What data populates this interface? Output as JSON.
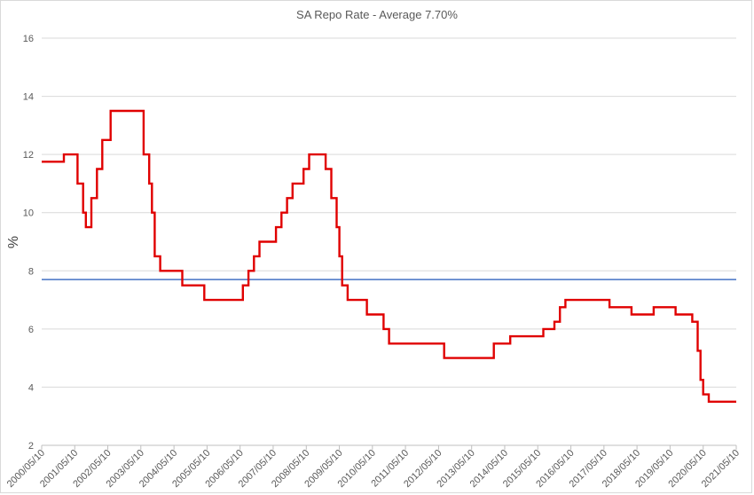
{
  "chart_data": {
    "type": "line",
    "title": "SA Repo Rate - Average 7.70%",
    "xlabel": "",
    "ylabel": "%",
    "ylim": [
      2,
      16
    ],
    "yticks": [
      2,
      4,
      6,
      8,
      10,
      12,
      14,
      16
    ],
    "xlim": [
      "2000/05/10",
      "2021/05/10"
    ],
    "xticks": [
      "2000/05/10",
      "2001/05/10",
      "2002/05/10",
      "2003/05/10",
      "2004/05/10",
      "2005/05/10",
      "2006/05/10",
      "2007/05/10",
      "2008/05/10",
      "2009/05/10",
      "2010/05/10",
      "2011/05/10",
      "2012/05/10",
      "2013/05/10",
      "2014/05/10",
      "2015/05/10",
      "2016/05/10",
      "2017/05/10",
      "2018/05/10",
      "2019/05/10",
      "2020/05/10",
      "2021/05/10"
    ],
    "grid": true,
    "average_line": {
      "value": 7.7,
      "color": "#4472c4"
    },
    "series": [
      {
        "color": "#e00000",
        "step": true,
        "points": [
          [
            "2000/05/10",
            11.75
          ],
          [
            "2001/01/10",
            12.0
          ],
          [
            "2001/06/10",
            11.0
          ],
          [
            "2001/08/10",
            10.0
          ],
          [
            "2001/09/10",
            9.5
          ],
          [
            "2001/11/10",
            10.5
          ],
          [
            "2002/01/10",
            11.5
          ],
          [
            "2002/03/10",
            12.5
          ],
          [
            "2002/06/10",
            13.5
          ],
          [
            "2003/06/10",
            12.0
          ],
          [
            "2003/08/10",
            11.0
          ],
          [
            "2003/09/10",
            10.0
          ],
          [
            "2003/10/10",
            8.5
          ],
          [
            "2003/12/10",
            8.0
          ],
          [
            "2004/08/10",
            7.5
          ],
          [
            "2005/04/10",
            7.0
          ],
          [
            "2006/06/10",
            7.5
          ],
          [
            "2006/08/10",
            8.0
          ],
          [
            "2006/10/10",
            8.5
          ],
          [
            "2006/12/10",
            9.0
          ],
          [
            "2007/06/10",
            9.5
          ],
          [
            "2007/08/10",
            10.0
          ],
          [
            "2007/10/10",
            10.5
          ],
          [
            "2007/12/10",
            11.0
          ],
          [
            "2008/04/10",
            11.5
          ],
          [
            "2008/06/10",
            12.0
          ],
          [
            "2008/12/10",
            11.5
          ],
          [
            "2009/02/10",
            10.5
          ],
          [
            "2009/04/10",
            9.5
          ],
          [
            "2009/05/10",
            8.5
          ],
          [
            "2009/06/10",
            7.5
          ],
          [
            "2009/08/10",
            7.0
          ],
          [
            "2010/03/10",
            6.5
          ],
          [
            "2010/09/10",
            6.0
          ],
          [
            "2010/11/10",
            5.5
          ],
          [
            "2012/07/10",
            5.0
          ],
          [
            "2014/01/10",
            5.5
          ],
          [
            "2014/07/10",
            5.75
          ],
          [
            "2015/07/10",
            6.0
          ],
          [
            "2015/11/10",
            6.25
          ],
          [
            "2016/01/10",
            6.75
          ],
          [
            "2016/03/10",
            7.0
          ],
          [
            "2017/07/10",
            6.75
          ],
          [
            "2018/03/10",
            6.5
          ],
          [
            "2018/11/10",
            6.75
          ],
          [
            "2019/07/10",
            6.5
          ],
          [
            "2020/01/10",
            6.25
          ],
          [
            "2020/03/10",
            5.25
          ],
          [
            "2020/04/10",
            4.25
          ],
          [
            "2020/05/10",
            3.75
          ],
          [
            "2020/07/10",
            3.5
          ],
          [
            "2021/05/10",
            3.5
          ]
        ]
      }
    ]
  }
}
